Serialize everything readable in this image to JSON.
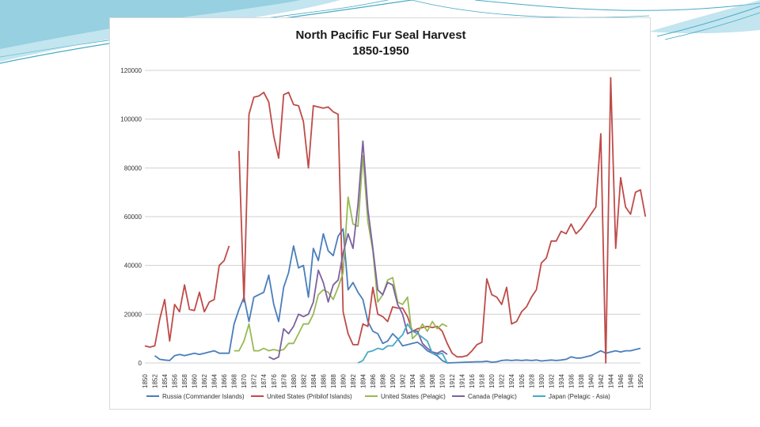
{
  "colors": {
    "russia": "#4a7ebb",
    "us_pribilof": "#be4b48",
    "us_pelagic": "#98b954",
    "canada": "#7d60a0",
    "japan": "#46aac5",
    "grid": "#d0d0d0",
    "decor": "#46aac5"
  },
  "chart_data": {
    "type": "line",
    "title": [
      "North Pacific Fur Seal Harvest",
      "1850-1950"
    ],
    "xlabel": "",
    "ylabel": "",
    "xlim": [
      1850,
      1950
    ],
    "ylim": [
      0,
      120000
    ],
    "y_ticks": [
      0,
      20000,
      40000,
      60000,
      80000,
      100000,
      120000
    ],
    "x_ticks": [
      1850,
      1852,
      1854,
      1856,
      1858,
      1860,
      1862,
      1864,
      1866,
      1868,
      1870,
      1872,
      1874,
      1876,
      1878,
      1880,
      1882,
      1884,
      1886,
      1888,
      1890,
      1892,
      1894,
      1896,
      1898,
      1900,
      1902,
      1904,
      1906,
      1908,
      1910,
      1912,
      1914,
      1916,
      1918,
      1920,
      1922,
      1924,
      1926,
      1928,
      1930,
      1932,
      1934,
      1936,
      1938,
      1940,
      1942,
      1944,
      1946,
      1948,
      1950
    ],
    "grid": "horizontal",
    "legend_position": "bottom",
    "series": [
      {
        "name": "Russia (Commander Islands)",
        "color_key": "russia",
        "points": [
          [
            1852,
            3000
          ],
          [
            1853,
            1500
          ],
          [
            1854,
            1200
          ],
          [
            1855,
            1000
          ],
          [
            1856,
            3000
          ],
          [
            1857,
            3500
          ],
          [
            1858,
            3000
          ],
          [
            1859,
            3500
          ],
          [
            1860,
            4000
          ],
          [
            1861,
            3500
          ],
          [
            1862,
            4000
          ],
          [
            1863,
            4500
          ],
          [
            1864,
            5000
          ],
          [
            1865,
            4000
          ],
          [
            1866,
            4000
          ],
          [
            1867,
            4000
          ],
          [
            1868,
            16000
          ],
          [
            1869,
            22000
          ],
          [
            1870,
            27000
          ],
          [
            1871,
            17000
          ],
          [
            1872,
            27000
          ],
          [
            1873,
            28000
          ],
          [
            1874,
            29000
          ],
          [
            1875,
            36000
          ],
          [
            1876,
            24000
          ],
          [
            1877,
            17000
          ],
          [
            1878,
            31000
          ],
          [
            1879,
            37000
          ],
          [
            1880,
            48000
          ],
          [
            1881,
            39000
          ],
          [
            1882,
            40000
          ],
          [
            1883,
            27000
          ],
          [
            1884,
            47000
          ],
          [
            1885,
            42000
          ],
          [
            1886,
            53000
          ],
          [
            1887,
            46000
          ],
          [
            1888,
            44000
          ],
          [
            1889,
            52000
          ],
          [
            1890,
            55000
          ],
          [
            1891,
            30000
          ],
          [
            1892,
            33000
          ],
          [
            1893,
            29000
          ],
          [
            1894,
            26000
          ],
          [
            1895,
            17000
          ],
          [
            1896,
            13000
          ],
          [
            1897,
            12000
          ],
          [
            1898,
            8000
          ],
          [
            1899,
            9000
          ],
          [
            1900,
            12000
          ],
          [
            1901,
            10000
          ],
          [
            1902,
            7000
          ],
          [
            1903,
            7500
          ],
          [
            1904,
            8000
          ],
          [
            1905,
            8500
          ],
          [
            1906,
            7000
          ],
          [
            1907,
            5000
          ],
          [
            1908,
            4000
          ],
          [
            1909,
            3000
          ],
          [
            1910,
            1000
          ],
          [
            1911,
            0
          ],
          [
            1917,
            500
          ],
          [
            1918,
            500
          ],
          [
            1919,
            700
          ],
          [
            1920,
            300
          ],
          [
            1921,
            500
          ],
          [
            1922,
            1000
          ],
          [
            1923,
            1200
          ],
          [
            1924,
            1000
          ],
          [
            1925,
            1200
          ],
          [
            1926,
            1000
          ],
          [
            1927,
            1200
          ],
          [
            1928,
            1000
          ],
          [
            1929,
            1200
          ],
          [
            1930,
            800
          ],
          [
            1931,
            1000
          ],
          [
            1932,
            1200
          ],
          [
            1933,
            1000
          ],
          [
            1934,
            1200
          ],
          [
            1935,
            1500
          ],
          [
            1936,
            2500
          ],
          [
            1937,
            2000
          ],
          [
            1938,
            2000
          ],
          [
            1939,
            2500
          ],
          [
            1940,
            3000
          ],
          [
            1941,
            4000
          ],
          [
            1942,
            5000
          ],
          [
            1943,
            4000
          ],
          [
            1944,
            4500
          ],
          [
            1945,
            5000
          ],
          [
            1946,
            4500
          ],
          [
            1947,
            5000
          ],
          [
            1948,
            5000
          ],
          [
            1949,
            5500
          ],
          [
            1950,
            6000
          ]
        ]
      },
      {
        "name": "United States (Pribilof Islands)",
        "color_key": "us_pribilof",
        "points": [
          [
            1850,
            7000
          ],
          [
            1851,
            6500
          ],
          [
            1852,
            7000
          ],
          [
            1853,
            18000
          ],
          [
            1854,
            26000
          ],
          [
            1855,
            9000
          ],
          [
            1856,
            24000
          ],
          [
            1857,
            21000
          ],
          [
            1858,
            32000
          ],
          [
            1859,
            22000
          ],
          [
            1860,
            21500
          ],
          [
            1861,
            29000
          ],
          [
            1862,
            21000
          ],
          [
            1863,
            25000
          ],
          [
            1864,
            26000
          ],
          [
            1865,
            40000
          ],
          [
            1866,
            42000
          ],
          [
            1867,
            48000
          ],
          [
            1868,
            null
          ],
          [
            1869,
            87000
          ],
          [
            1870,
            25000
          ],
          [
            1871,
            102000
          ],
          [
            1872,
            109000
          ],
          [
            1873,
            109500
          ],
          [
            1874,
            111000
          ],
          [
            1875,
            107000
          ],
          [
            1876,
            93000
          ],
          [
            1877,
            84000
          ],
          [
            1878,
            110000
          ],
          [
            1879,
            111000
          ],
          [
            1880,
            106000
          ],
          [
            1881,
            105500
          ],
          [
            1882,
            99000
          ],
          [
            1883,
            80000
          ],
          [
            1884,
            105500
          ],
          [
            1885,
            105000
          ],
          [
            1886,
            104500
          ],
          [
            1887,
            105000
          ],
          [
            1888,
            103000
          ],
          [
            1889,
            102000
          ],
          [
            1890,
            21000
          ],
          [
            1891,
            12000
          ],
          [
            1892,
            7500
          ],
          [
            1893,
            7500
          ],
          [
            1894,
            16000
          ],
          [
            1895,
            15000
          ],
          [
            1896,
            31000
          ],
          [
            1897,
            20000
          ],
          [
            1898,
            19000
          ],
          [
            1899,
            17000
          ],
          [
            1900,
            23000
          ],
          [
            1901,
            22500
          ],
          [
            1902,
            22500
          ],
          [
            1903,
            19000
          ],
          [
            1904,
            13000
          ],
          [
            1905,
            14000
          ],
          [
            1906,
            14500
          ],
          [
            1907,
            15000
          ],
          [
            1908,
            14500
          ],
          [
            1909,
            15000
          ],
          [
            1910,
            13000
          ],
          [
            1911,
            8000
          ],
          [
            1912,
            4000
          ],
          [
            1913,
            2500
          ],
          [
            1914,
            2500
          ],
          [
            1915,
            3000
          ],
          [
            1916,
            5000
          ],
          [
            1917,
            7500
          ],
          [
            1918,
            8500
          ],
          [
            1919,
            34500
          ],
          [
            1920,
            28000
          ],
          [
            1921,
            27000
          ],
          [
            1922,
            24000
          ],
          [
            1923,
            31000
          ],
          [
            1924,
            16000
          ],
          [
            1925,
            17000
          ],
          [
            1926,
            21000
          ],
          [
            1927,
            23000
          ],
          [
            1928,
            27000
          ],
          [
            1929,
            30000
          ],
          [
            1930,
            41000
          ],
          [
            1931,
            43000
          ],
          [
            1932,
            50000
          ],
          [
            1933,
            50000
          ],
          [
            1934,
            54000
          ],
          [
            1935,
            53000
          ],
          [
            1936,
            57000
          ],
          [
            1937,
            53000
          ],
          [
            1938,
            55000
          ],
          [
            1939,
            58000
          ],
          [
            1940,
            61000
          ],
          [
            1941,
            64000
          ],
          [
            1942,
            94000
          ],
          [
            1943,
            0
          ],
          [
            1944,
            117000
          ],
          [
            1945,
            47000
          ],
          [
            1946,
            76000
          ],
          [
            1947,
            64000
          ],
          [
            1948,
            61000
          ],
          [
            1949,
            70000
          ],
          [
            1950,
            71000
          ],
          [
            1951,
            60000
          ]
        ]
      },
      {
        "name": "United States (Pelagic)",
        "color_key": "us_pelagic",
        "points": [
          [
            1868,
            5000
          ],
          [
            1869,
            5000
          ],
          [
            1870,
            9000
          ],
          [
            1871,
            16000
          ],
          [
            1872,
            5000
          ],
          [
            1873,
            5000
          ],
          [
            1874,
            6000
          ],
          [
            1875,
            5000
          ],
          [
            1876,
            5500
          ],
          [
            1877,
            5000
          ],
          [
            1878,
            5500
          ],
          [
            1879,
            8000
          ],
          [
            1880,
            8000
          ],
          [
            1881,
            12000
          ],
          [
            1882,
            16000
          ],
          [
            1883,
            16000
          ],
          [
            1884,
            20000
          ],
          [
            1885,
            28000
          ],
          [
            1886,
            30000
          ],
          [
            1887,
            29000
          ],
          [
            1888,
            26000
          ],
          [
            1889,
            31000
          ],
          [
            1890,
            37000
          ],
          [
            1891,
            68000
          ],
          [
            1892,
            57000
          ],
          [
            1893,
            56000
          ],
          [
            1894,
            85000
          ],
          [
            1895,
            58000
          ],
          [
            1896,
            46000
          ],
          [
            1897,
            25000
          ],
          [
            1898,
            28000
          ],
          [
            1899,
            34000
          ],
          [
            1900,
            35000
          ],
          [
            1901,
            25000
          ],
          [
            1902,
            24000
          ],
          [
            1903,
            27000
          ],
          [
            1904,
            10000
          ],
          [
            1905,
            12000
          ],
          [
            1906,
            16000
          ],
          [
            1907,
            13000
          ],
          [
            1908,
            17000
          ],
          [
            1909,
            14000
          ],
          [
            1910,
            16000
          ],
          [
            1911,
            15000
          ]
        ]
      },
      {
        "name": "Canada (Pelagic)",
        "color_key": "canada",
        "points": [
          [
            1875,
            2500
          ],
          [
            1876,
            1500
          ],
          [
            1877,
            2500
          ],
          [
            1878,
            14000
          ],
          [
            1879,
            12000
          ],
          [
            1880,
            15000
          ],
          [
            1881,
            20000
          ],
          [
            1882,
            19000
          ],
          [
            1883,
            20000
          ],
          [
            1884,
            25000
          ],
          [
            1885,
            38000
          ],
          [
            1886,
            33000
          ],
          [
            1887,
            25000
          ],
          [
            1888,
            32000
          ],
          [
            1889,
            34000
          ],
          [
            1890,
            45000
          ],
          [
            1891,
            53000
          ],
          [
            1892,
            47000
          ],
          [
            1893,
            65000
          ],
          [
            1894,
            91000
          ],
          [
            1895,
            63000
          ],
          [
            1896,
            47000
          ],
          [
            1897,
            30000
          ],
          [
            1898,
            28000
          ],
          [
            1899,
            33000
          ],
          [
            1900,
            32000
          ],
          [
            1901,
            24000
          ],
          [
            1902,
            20000
          ],
          [
            1903,
            12000
          ],
          [
            1904,
            13000
          ],
          [
            1905,
            13000
          ],
          [
            1906,
            8000
          ],
          [
            1907,
            6000
          ],
          [
            1908,
            4500
          ],
          [
            1909,
            4000
          ],
          [
            1910,
            5000
          ],
          [
            1911,
            3500
          ]
        ]
      },
      {
        "name": "Japan (Pelagic - Asia)",
        "color_key": "japan",
        "points": [
          [
            1893,
            0
          ],
          [
            1894,
            1000
          ],
          [
            1895,
            4500
          ],
          [
            1896,
            5000
          ],
          [
            1897,
            6000
          ],
          [
            1898,
            5500
          ],
          [
            1899,
            7000
          ],
          [
            1900,
            7000
          ],
          [
            1901,
            9500
          ],
          [
            1902,
            11500
          ],
          [
            1903,
            16000
          ],
          [
            1904,
            13000
          ],
          [
            1905,
            12000
          ],
          [
            1906,
            10500
          ],
          [
            1907,
            9000
          ],
          [
            1908,
            4000
          ],
          [
            1909,
            3500
          ],
          [
            1910,
            4000
          ],
          [
            1911,
            0
          ]
        ]
      }
    ]
  }
}
